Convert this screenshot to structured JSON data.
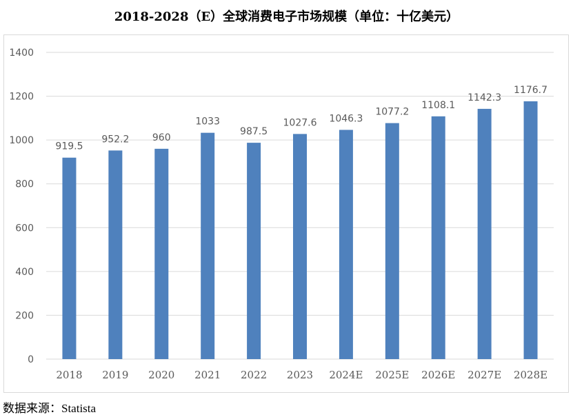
{
  "title": "2018-2028（E）全球消费电子市场规模（单位：十亿美元）",
  "source": {
    "label": "数据来源：",
    "name": "Statista"
  },
  "colors": {
    "bar": "#4f81bd",
    "grid": "#d9d9d9",
    "text": "#595959",
    "frame": "#d9d9d9"
  },
  "chart_data": {
    "type": "bar",
    "title": "2018-2028（E）全球消费电子市场规模（单位：十亿美元）",
    "xlabel": "",
    "ylabel": "",
    "categories": [
      "2018",
      "2019",
      "2020",
      "2021",
      "2022",
      "2023",
      "2024E",
      "2025E",
      "2026E",
      "2027E",
      "2028E"
    ],
    "values": [
      919.5,
      952.2,
      960,
      1033,
      987.5,
      1027.6,
      1046.3,
      1077.2,
      1108.1,
      1142.3,
      1176.7
    ],
    "value_labels": [
      "919.5",
      "952.2",
      "960",
      "1033",
      "987.5",
      "1027.6",
      "1046.3",
      "1077.2",
      "1108.1",
      "1142.3",
      "1176.7"
    ],
    "ylim": [
      0,
      1400
    ],
    "yticks": [
      0,
      200,
      400,
      600,
      800,
      1000,
      1200,
      1400
    ],
    "grid": true,
    "legend": "none"
  }
}
